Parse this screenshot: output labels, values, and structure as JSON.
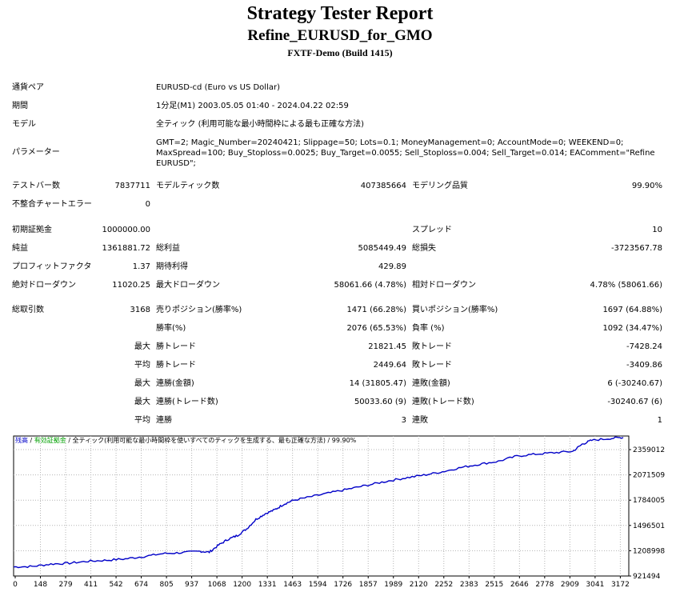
{
  "report": {
    "title": "Strategy Tester Report",
    "subtitle": "Refine_EURUSD_for_GMO",
    "build": "FXTF-Demo (Build 1415)"
  },
  "info": {
    "pair_label": "通貨ペア",
    "pair_value": "EURUSD-cd (Euro vs US Dollar)",
    "period_label": "期間",
    "period_value": "1分足(M1) 2003.05.05 01:40 - 2024.04.22 02:59",
    "model_label": "モデル",
    "model_value": "全ティック (利用可能な最小時間枠による最も正確な方法)",
    "params_label": "パラメーター",
    "params_line1": "GMT=2; Magic_Number=20240421; Slippage=50; Lots=0.1; MoneyManagement=0; AccountMode=0; WEEKEND=0;",
    "params_line2": "MaxSpread=100; Buy_Stoploss=0.0025; Buy_Target=0.0055; Sell_Stoploss=0.004; Sell_Target=0.014; EAComment=\"Refine",
    "params_line3": "EURUSD\";"
  },
  "stats": {
    "bars_label": "テストバー数",
    "bars_value": "7837711",
    "ticks_label": "モデルティック数",
    "ticks_value": "407385664",
    "quality_label": "モデリング品質",
    "quality_value": "99.90%",
    "mismatch_label": "不整合チャートエラー",
    "mismatch_value": "0",
    "deposit_label": "初期証拠金",
    "deposit_value": "1000000.00",
    "spread_label": "スプレッド",
    "spread_value": "10",
    "net_label": "純益",
    "net_value": "1361881.72",
    "gross_profit_label": "総利益",
    "gross_profit_value": "5085449.49",
    "gross_loss_label": "総損失",
    "gross_loss_value": "-3723567.78",
    "pf_label": "プロフィットファクタ",
    "pf_value": "1.37",
    "payoff_label": "期待利得",
    "payoff_value": "429.89",
    "abs_dd_label": "絶対ドローダウン",
    "abs_dd_value": "11020.25",
    "max_dd_label": "最大ドローダウン",
    "max_dd_value": "58061.66 (4.78%)",
    "rel_dd_label": "相対ドローダウン",
    "rel_dd_value": "4.78% (58061.66)",
    "trades_label": "総取引数",
    "trades_value": "3168",
    "short_label": "売りポジション(勝率%)",
    "short_value": "1471 (66.28%)",
    "long_label": "買いポジション(勝率%)",
    "long_value": "1697 (64.88%)",
    "win_pct_label": "勝率(%)",
    "win_pct_value": "2076 (65.53%)",
    "loss_pct_label": "負率 (%)",
    "loss_pct_value": "1092 (34.47%)",
    "max_word": "最大",
    "avg_word": "平均",
    "largest_win_label": "勝トレード",
    "largest_win_value": "21821.45",
    "largest_loss_label": "敗トレード",
    "largest_loss_value": "-7428.24",
    "avg_win_label": "勝トレード",
    "avg_win_value": "2449.64",
    "avg_loss_label": "敗トレード",
    "avg_loss_value": "-3409.86",
    "max_cons_wins_label": "連勝(金額)",
    "max_cons_wins_value": "14 (31805.47)",
    "max_cons_losses_label": "連敗(金額)",
    "max_cons_losses_value": "6 (-30240.67)",
    "max_cons_profit_label": "連勝(トレード数)",
    "max_cons_profit_value": "50033.60 (9)",
    "max_cons_loss_label": "連敗(トレード数)",
    "max_cons_loss_value": "-30240.67 (6)",
    "avg_cons_wins_label": "連勝",
    "avg_cons_wins_value": "3",
    "avg_cons_losses_label": "連敗",
    "avg_cons_losses_value": "1"
  },
  "chart_legend": {
    "balance": "残高",
    "sep1": " / ",
    "equity": "有効証拠金",
    "sep2": " / ",
    "model_text": "全ティック(利用可能な最小時間枠を使いすべてのティックを生成する、最も正確な方法)",
    "quality": " / 99.90%",
    "balance_color": "#0000c8",
    "equity_color": "#00a000"
  },
  "chart_data": {
    "type": "line",
    "x_ticks": [
      "0",
      "148",
      "279",
      "411",
      "542",
      "674",
      "805",
      "937",
      "1068",
      "1200",
      "1331",
      "1463",
      "1594",
      "1726",
      "1857",
      "1989",
      "2120",
      "2252",
      "2383",
      "2515",
      "2646",
      "2778",
      "2909",
      "3041",
      "3172"
    ],
    "y_ticks": [
      "2359012",
      "2071509",
      "1784005",
      "1496501",
      "1208998",
      "921494"
    ],
    "ylim": [
      921494,
      2359012
    ],
    "xlim": [
      0,
      3300
    ],
    "series": [
      {
        "color": "#0000c8",
        "points": [
          [
            0,
            1000000
          ],
          [
            100,
            1005000
          ],
          [
            200,
            1030000
          ],
          [
            300,
            1040000
          ],
          [
            400,
            1060000
          ],
          [
            500,
            1070000
          ],
          [
            600,
            1085000
          ],
          [
            700,
            1110000
          ],
          [
            800,
            1140000
          ],
          [
            900,
            1150000
          ],
          [
            1000,
            1165000
          ],
          [
            1050,
            1155000
          ],
          [
            1100,
            1230000
          ],
          [
            1150,
            1290000
          ],
          [
            1200,
            1330000
          ],
          [
            1250,
            1400000
          ],
          [
            1300,
            1500000
          ],
          [
            1350,
            1560000
          ],
          [
            1400,
            1600000
          ],
          [
            1450,
            1660000
          ],
          [
            1500,
            1700000
          ],
          [
            1600,
            1740000
          ],
          [
            1700,
            1780000
          ],
          [
            1800,
            1820000
          ],
          [
            1900,
            1860000
          ],
          [
            2000,
            1900000
          ],
          [
            2100,
            1935000
          ],
          [
            2200,
            1965000
          ],
          [
            2300,
            2000000
          ],
          [
            2400,
            2045000
          ],
          [
            2500,
            2080000
          ],
          [
            2600,
            2110000
          ],
          [
            2700,
            2165000
          ],
          [
            2800,
            2185000
          ],
          [
            2900,
            2200000
          ],
          [
            3000,
            2215000
          ],
          [
            3050,
            2290000
          ],
          [
            3100,
            2330000
          ],
          [
            3200,
            2350000
          ],
          [
            3270,
            2361881
          ]
        ]
      }
    ]
  }
}
